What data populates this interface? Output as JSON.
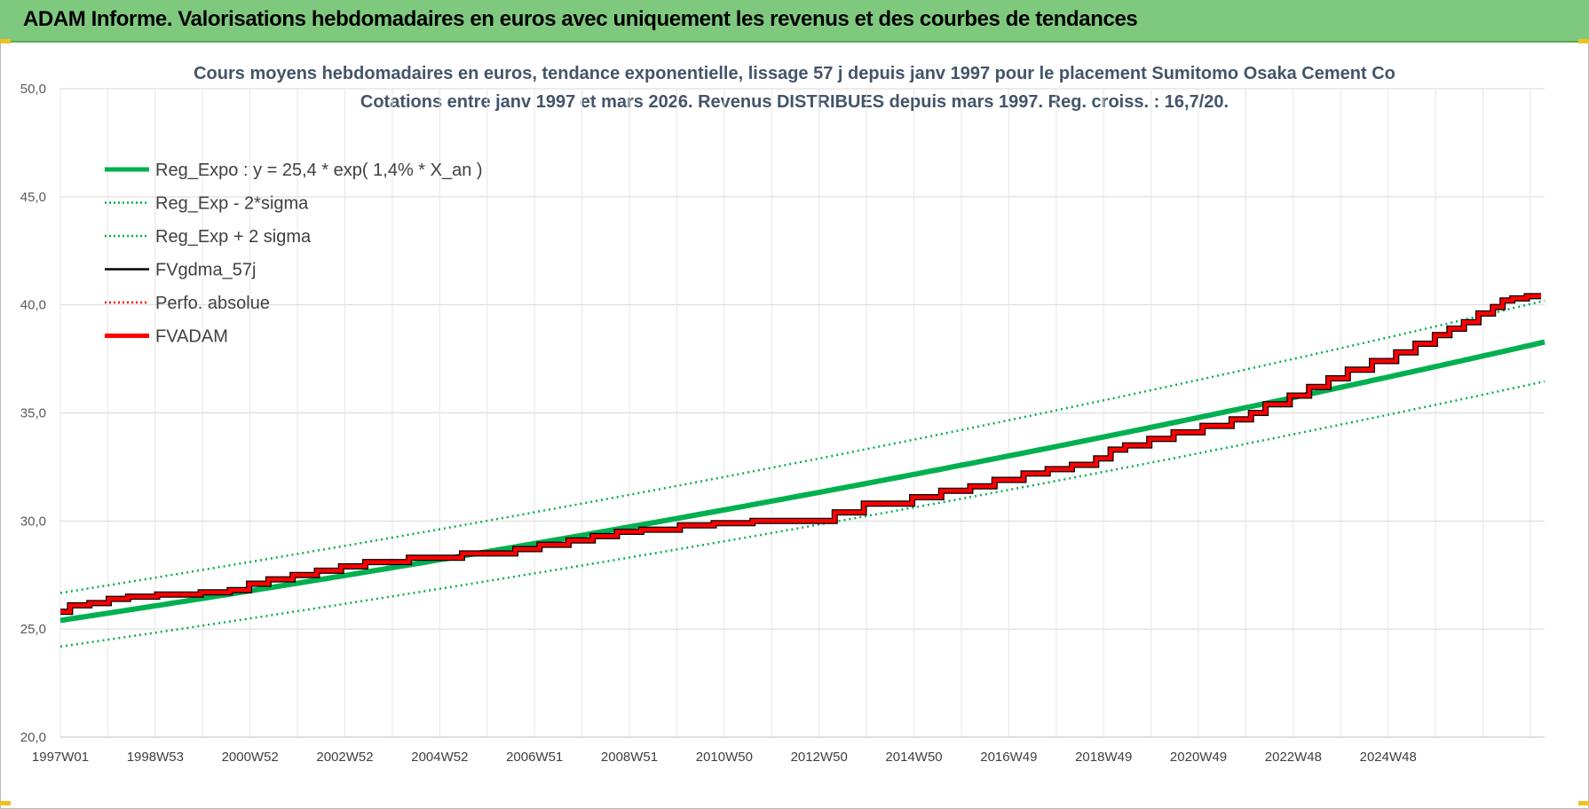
{
  "banner": {
    "title": "ADAM Informe. Valorisations hebdomadaires en euros avec uniquement les revenus et des courbes de tendances"
  },
  "chart_data": {
    "type": "line",
    "title": "Cours moyens hebdomadaires en euros, tendance exponentielle, lissage 57 j depuis janv 1997 pour le placement Sumitomo Osaka Cement Co",
    "subtitle": "Cotations entre janv 1997 et mars 2026. Revenus DISTRIBUES depuis mars 1997. Reg. croiss. : 16,7/20.",
    "xlabel": "",
    "ylabel": "",
    "x_tick_labels": [
      "1997W01",
      "1998W53",
      "2000W52",
      "2002W52",
      "2004W52",
      "2006W51",
      "2008W51",
      "2010W50",
      "2012W50",
      "2014W50",
      "2016W49",
      "2018W49",
      "2020W49",
      "2022W48",
      "2024W48"
    ],
    "x_range": [
      1997.0,
      2026.3
    ],
    "ylim": [
      20,
      50
    ],
    "y_ticks": [
      "20,0",
      "25,0",
      "30,0",
      "35,0",
      "40,0",
      "45,0",
      "50,0"
    ],
    "y_tick_values": [
      20,
      25,
      30,
      35,
      40,
      45,
      50
    ],
    "grid": true,
    "legend_position": "top-left",
    "regression": {
      "a": 25.4,
      "rate": 0.014,
      "sigma_band": 1.05
    },
    "fvadam_steps": [
      [
        1997.0,
        25.8
      ],
      [
        1997.2,
        26.1
      ],
      [
        1997.6,
        26.2
      ],
      [
        1998.0,
        26.4
      ],
      [
        1998.4,
        26.5
      ],
      [
        1999.0,
        26.6
      ],
      [
        1999.9,
        26.7
      ],
      [
        2000.5,
        26.8
      ],
      [
        2000.9,
        27.1
      ],
      [
        2001.3,
        27.3
      ],
      [
        2001.8,
        27.5
      ],
      [
        2002.3,
        27.7
      ],
      [
        2002.8,
        27.9
      ],
      [
        2003.3,
        28.1
      ],
      [
        2004.2,
        28.3
      ],
      [
        2005.3,
        28.5
      ],
      [
        2006.4,
        28.7
      ],
      [
        2006.9,
        28.9
      ],
      [
        2007.5,
        29.1
      ],
      [
        2008.0,
        29.3
      ],
      [
        2008.5,
        29.5
      ],
      [
        2009.0,
        29.6
      ],
      [
        2009.8,
        29.8
      ],
      [
        2010.5,
        29.9
      ],
      [
        2011.3,
        30.0
      ],
      [
        2013.0,
        30.4
      ],
      [
        2013.6,
        30.8
      ],
      [
        2014.6,
        31.1
      ],
      [
        2015.2,
        31.4
      ],
      [
        2015.8,
        31.6
      ],
      [
        2016.3,
        31.9
      ],
      [
        2016.9,
        32.2
      ],
      [
        2017.4,
        32.4
      ],
      [
        2017.9,
        32.6
      ],
      [
        2018.4,
        32.9
      ],
      [
        2018.7,
        33.3
      ],
      [
        2019.0,
        33.5
      ],
      [
        2019.5,
        33.8
      ],
      [
        2020.0,
        34.1
      ],
      [
        2020.6,
        34.4
      ],
      [
        2021.2,
        34.7
      ],
      [
        2021.6,
        35.0
      ],
      [
        2021.9,
        35.4
      ],
      [
        2022.4,
        35.8
      ],
      [
        2022.8,
        36.2
      ],
      [
        2023.2,
        36.6
      ],
      [
        2023.6,
        37.0
      ],
      [
        2024.1,
        37.4
      ],
      [
        2024.6,
        37.8
      ],
      [
        2025.0,
        38.2
      ],
      [
        2025.4,
        38.6
      ],
      [
        2025.7,
        38.9
      ],
      [
        2026.0,
        39.2
      ],
      [
        2026.3,
        39.6
      ],
      [
        2026.6,
        39.9
      ],
      [
        2026.8,
        40.2
      ],
      [
        2027.0,
        40.3
      ],
      [
        2027.3,
        40.4
      ]
    ],
    "series": [
      {
        "name": "Reg_Expo : y = 25,4 * exp( 1,4% *  X_an )",
        "color": "#00b050",
        "style": "solid-thick"
      },
      {
        "name": "Reg_Exp - 2*sigma",
        "color": "#00b050",
        "style": "dotted"
      },
      {
        "name": "Reg_Exp + 2 sigma",
        "color": "#00b050",
        "style": "dotted"
      },
      {
        "name": "FVgdma_57j",
        "color": "#000000",
        "style": "solid-thin"
      },
      {
        "name": "Perfo. absolue",
        "color": "#ff0000",
        "style": "dotted"
      },
      {
        "name": "FVADAM",
        "color": "#ff0000",
        "style": "solid-thick"
      }
    ]
  }
}
